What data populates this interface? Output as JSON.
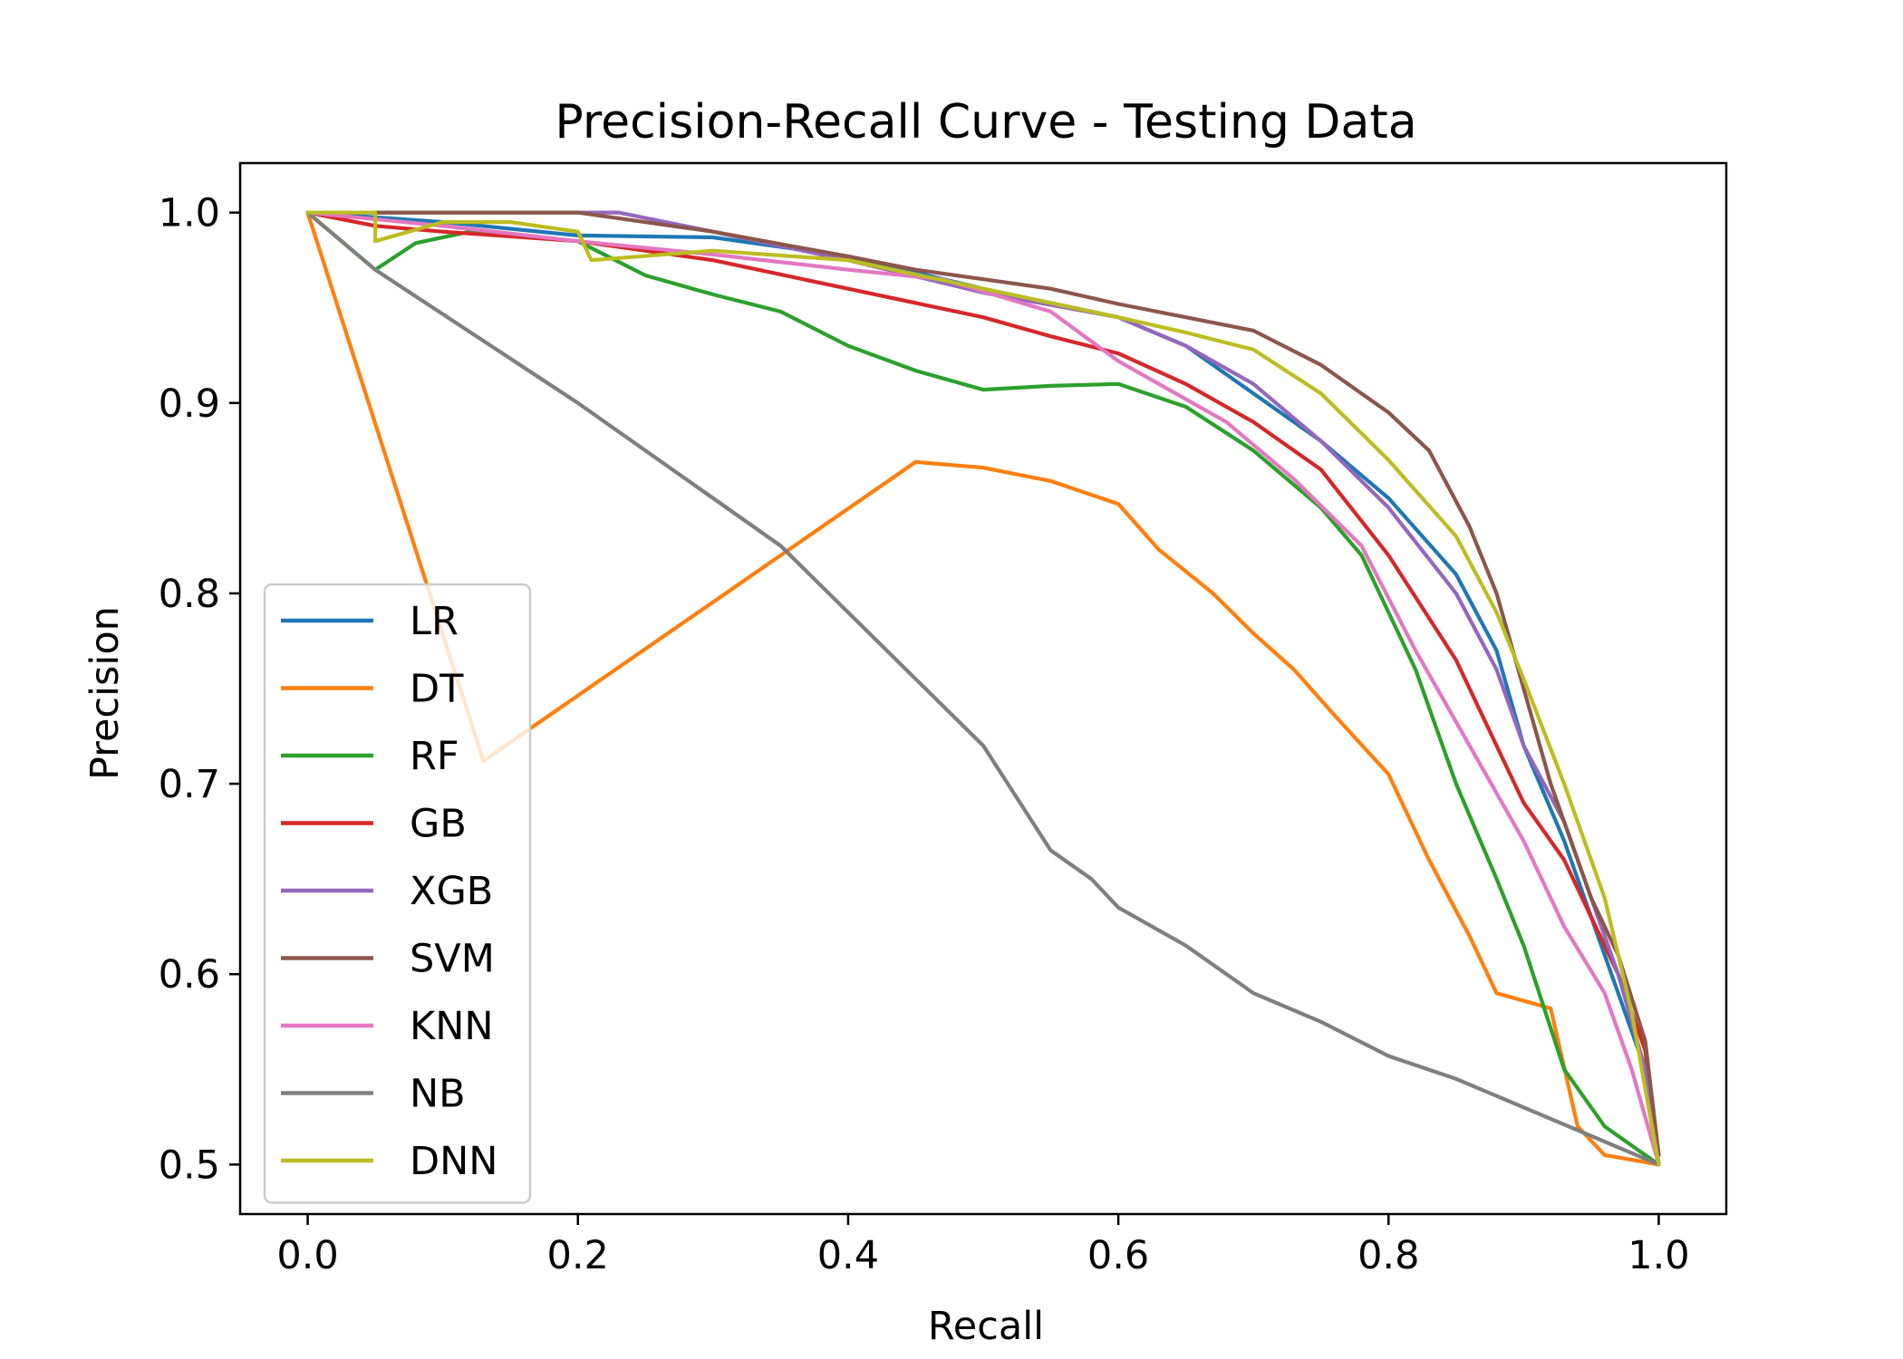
{
  "chart_data": {
    "type": "line",
    "title": "Precision-Recall Curve - Testing Data",
    "xlabel": "Recall",
    "ylabel": "Precision",
    "xlim": [
      -0.05,
      1.05
    ],
    "ylim": [
      0.474,
      1.026
    ],
    "xticks": [
      0.0,
      0.2,
      0.4,
      0.6,
      0.8,
      1.0
    ],
    "xtick_labels": [
      "0.0",
      "0.2",
      "0.4",
      "0.6",
      "0.8",
      "1.0"
    ],
    "yticks": [
      0.5,
      0.6,
      0.7,
      0.8,
      0.9,
      1.0
    ],
    "ytick_labels": [
      "0.5",
      "0.6",
      "0.7",
      "0.8",
      "0.9",
      "1.0"
    ],
    "grid": false,
    "legend_position": "lower-left",
    "series": [
      {
        "name": "LR",
        "color": "#1f77b4",
        "points": [
          [
            0,
            1.0
          ],
          [
            0.1,
            0.995
          ],
          [
            0.2,
            0.988
          ],
          [
            0.3,
            0.987
          ],
          [
            0.4,
            0.977
          ],
          [
            0.5,
            0.96
          ],
          [
            0.6,
            0.945
          ],
          [
            0.65,
            0.93
          ],
          [
            0.7,
            0.905
          ],
          [
            0.75,
            0.88
          ],
          [
            0.8,
            0.85
          ],
          [
            0.85,
            0.81
          ],
          [
            0.88,
            0.77
          ],
          [
            0.9,
            0.72
          ],
          [
            0.93,
            0.67
          ],
          [
            0.95,
            0.63
          ],
          [
            0.97,
            0.59
          ],
          [
            0.99,
            0.55
          ],
          [
            1.0,
            0.5
          ]
        ]
      },
      {
        "name": "DT",
        "color": "#ff7f0e",
        "points": [
          [
            0,
            1.0
          ],
          [
            0.13,
            0.712
          ],
          [
            0.45,
            0.869
          ],
          [
            0.5,
            0.866
          ],
          [
            0.55,
            0.859
          ],
          [
            0.6,
            0.847
          ],
          [
            0.63,
            0.823
          ],
          [
            0.67,
            0.8
          ],
          [
            0.7,
            0.779
          ],
          [
            0.73,
            0.76
          ],
          [
            0.76,
            0.736
          ],
          [
            0.8,
            0.705
          ],
          [
            0.83,
            0.66
          ],
          [
            0.86,
            0.62
          ],
          [
            0.88,
            0.59
          ],
          [
            0.92,
            0.582
          ],
          [
            0.94,
            0.52
          ],
          [
            0.96,
            0.505
          ],
          [
            1.0,
            0.5
          ]
        ]
      },
      {
        "name": "RF",
        "color": "#2ca02c",
        "points": [
          [
            0,
            1.0
          ],
          [
            0.05,
            0.97
          ],
          [
            0.08,
            0.984
          ],
          [
            0.12,
            0.99
          ],
          [
            0.2,
            0.985
          ],
          [
            0.25,
            0.967
          ],
          [
            0.3,
            0.957
          ],
          [
            0.35,
            0.948
          ],
          [
            0.4,
            0.93
          ],
          [
            0.45,
            0.917
          ],
          [
            0.5,
            0.907
          ],
          [
            0.55,
            0.909
          ],
          [
            0.6,
            0.91
          ],
          [
            0.65,
            0.898
          ],
          [
            0.7,
            0.875
          ],
          [
            0.75,
            0.845
          ],
          [
            0.78,
            0.82
          ],
          [
            0.82,
            0.76
          ],
          [
            0.85,
            0.7
          ],
          [
            0.88,
            0.65
          ],
          [
            0.9,
            0.615
          ],
          [
            0.93,
            0.55
          ],
          [
            0.96,
            0.52
          ],
          [
            0.99,
            0.505
          ],
          [
            1.0,
            0.5
          ]
        ]
      },
      {
        "name": "GB",
        "color": "#d62728",
        "points": [
          [
            0,
            1.0
          ],
          [
            0.05,
            0.993
          ],
          [
            0.1,
            0.99
          ],
          [
            0.2,
            0.985
          ],
          [
            0.3,
            0.975
          ],
          [
            0.4,
            0.96
          ],
          [
            0.5,
            0.945
          ],
          [
            0.55,
            0.935
          ],
          [
            0.6,
            0.926
          ],
          [
            0.65,
            0.91
          ],
          [
            0.7,
            0.89
          ],
          [
            0.75,
            0.865
          ],
          [
            0.8,
            0.82
          ],
          [
            0.85,
            0.765
          ],
          [
            0.88,
            0.72
          ],
          [
            0.9,
            0.69
          ],
          [
            0.93,
            0.66
          ],
          [
            0.95,
            0.63
          ],
          [
            0.97,
            0.6
          ],
          [
            0.99,
            0.56
          ],
          [
            1.0,
            0.505
          ]
        ]
      },
      {
        "name": "XGB",
        "color": "#9467bd",
        "points": [
          [
            0,
            1.0
          ],
          [
            0.1,
            1.0
          ],
          [
            0.23,
            1.0
          ],
          [
            0.3,
            0.99
          ],
          [
            0.4,
            0.975
          ],
          [
            0.5,
            0.958
          ],
          [
            0.6,
            0.945
          ],
          [
            0.65,
            0.93
          ],
          [
            0.7,
            0.91
          ],
          [
            0.75,
            0.88
          ],
          [
            0.8,
            0.845
          ],
          [
            0.85,
            0.8
          ],
          [
            0.88,
            0.76
          ],
          [
            0.9,
            0.72
          ],
          [
            0.93,
            0.68
          ],
          [
            0.95,
            0.64
          ],
          [
            0.97,
            0.6
          ],
          [
            0.99,
            0.55
          ],
          [
            1.0,
            0.5
          ]
        ]
      },
      {
        "name": "SVM",
        "color": "#8c564b",
        "points": [
          [
            0,
            1.0
          ],
          [
            0.1,
            1.0
          ],
          [
            0.2,
            1.0
          ],
          [
            0.3,
            0.99
          ],
          [
            0.4,
            0.977
          ],
          [
            0.45,
            0.97
          ],
          [
            0.5,
            0.965
          ],
          [
            0.55,
            0.96
          ],
          [
            0.6,
            0.952
          ],
          [
            0.65,
            0.945
          ],
          [
            0.7,
            0.938
          ],
          [
            0.75,
            0.92
          ],
          [
            0.8,
            0.895
          ],
          [
            0.83,
            0.875
          ],
          [
            0.86,
            0.835
          ],
          [
            0.88,
            0.8
          ],
          [
            0.9,
            0.75
          ],
          [
            0.92,
            0.7
          ],
          [
            0.95,
            0.64
          ],
          [
            0.97,
            0.61
          ],
          [
            0.99,
            0.565
          ],
          [
            1.0,
            0.505
          ]
        ]
      },
      {
        "name": "KNN",
        "color": "#e377c2",
        "points": [
          [
            0,
            1.0
          ],
          [
            0.1,
            0.993
          ],
          [
            0.2,
            0.985
          ],
          [
            0.3,
            0.978
          ],
          [
            0.4,
            0.97
          ],
          [
            0.47,
            0.965
          ],
          [
            0.55,
            0.948
          ],
          [
            0.6,
            0.922
          ],
          [
            0.68,
            0.89
          ],
          [
            0.73,
            0.86
          ],
          [
            0.78,
            0.825
          ],
          [
            0.82,
            0.77
          ],
          [
            0.86,
            0.72
          ],
          [
            0.9,
            0.67
          ],
          [
            0.93,
            0.625
          ],
          [
            0.96,
            0.59
          ],
          [
            0.98,
            0.55
          ],
          [
            1.0,
            0.5
          ]
        ]
      },
      {
        "name": "NB",
        "color": "#7f7f7f",
        "points": [
          [
            0,
            1.0
          ],
          [
            0.05,
            0.97
          ],
          [
            0.2,
            0.9
          ],
          [
            0.35,
            0.825
          ],
          [
            0.5,
            0.72
          ],
          [
            0.55,
            0.665
          ],
          [
            0.58,
            0.65
          ],
          [
            0.6,
            0.635
          ],
          [
            0.65,
            0.615
          ],
          [
            0.7,
            0.59
          ],
          [
            0.75,
            0.575
          ],
          [
            0.8,
            0.557
          ],
          [
            0.85,
            0.545
          ],
          [
            0.9,
            0.53
          ],
          [
            0.95,
            0.515
          ],
          [
            1.0,
            0.5
          ]
        ]
      },
      {
        "name": "DNN",
        "color": "#bcbd22",
        "points": [
          [
            0,
            1.0
          ],
          [
            0.05,
            1.0
          ],
          [
            0.05,
            0.985
          ],
          [
            0.1,
            0.995
          ],
          [
            0.15,
            0.995
          ],
          [
            0.2,
            0.99
          ],
          [
            0.21,
            0.975
          ],
          [
            0.3,
            0.98
          ],
          [
            0.4,
            0.975
          ],
          [
            0.5,
            0.96
          ],
          [
            0.6,
            0.945
          ],
          [
            0.65,
            0.937
          ],
          [
            0.7,
            0.928
          ],
          [
            0.75,
            0.905
          ],
          [
            0.8,
            0.87
          ],
          [
            0.85,
            0.83
          ],
          [
            0.88,
            0.79
          ],
          [
            0.9,
            0.755
          ],
          [
            0.93,
            0.7
          ],
          [
            0.96,
            0.64
          ],
          [
            0.98,
            0.58
          ],
          [
            1.0,
            0.5
          ]
        ]
      }
    ]
  }
}
